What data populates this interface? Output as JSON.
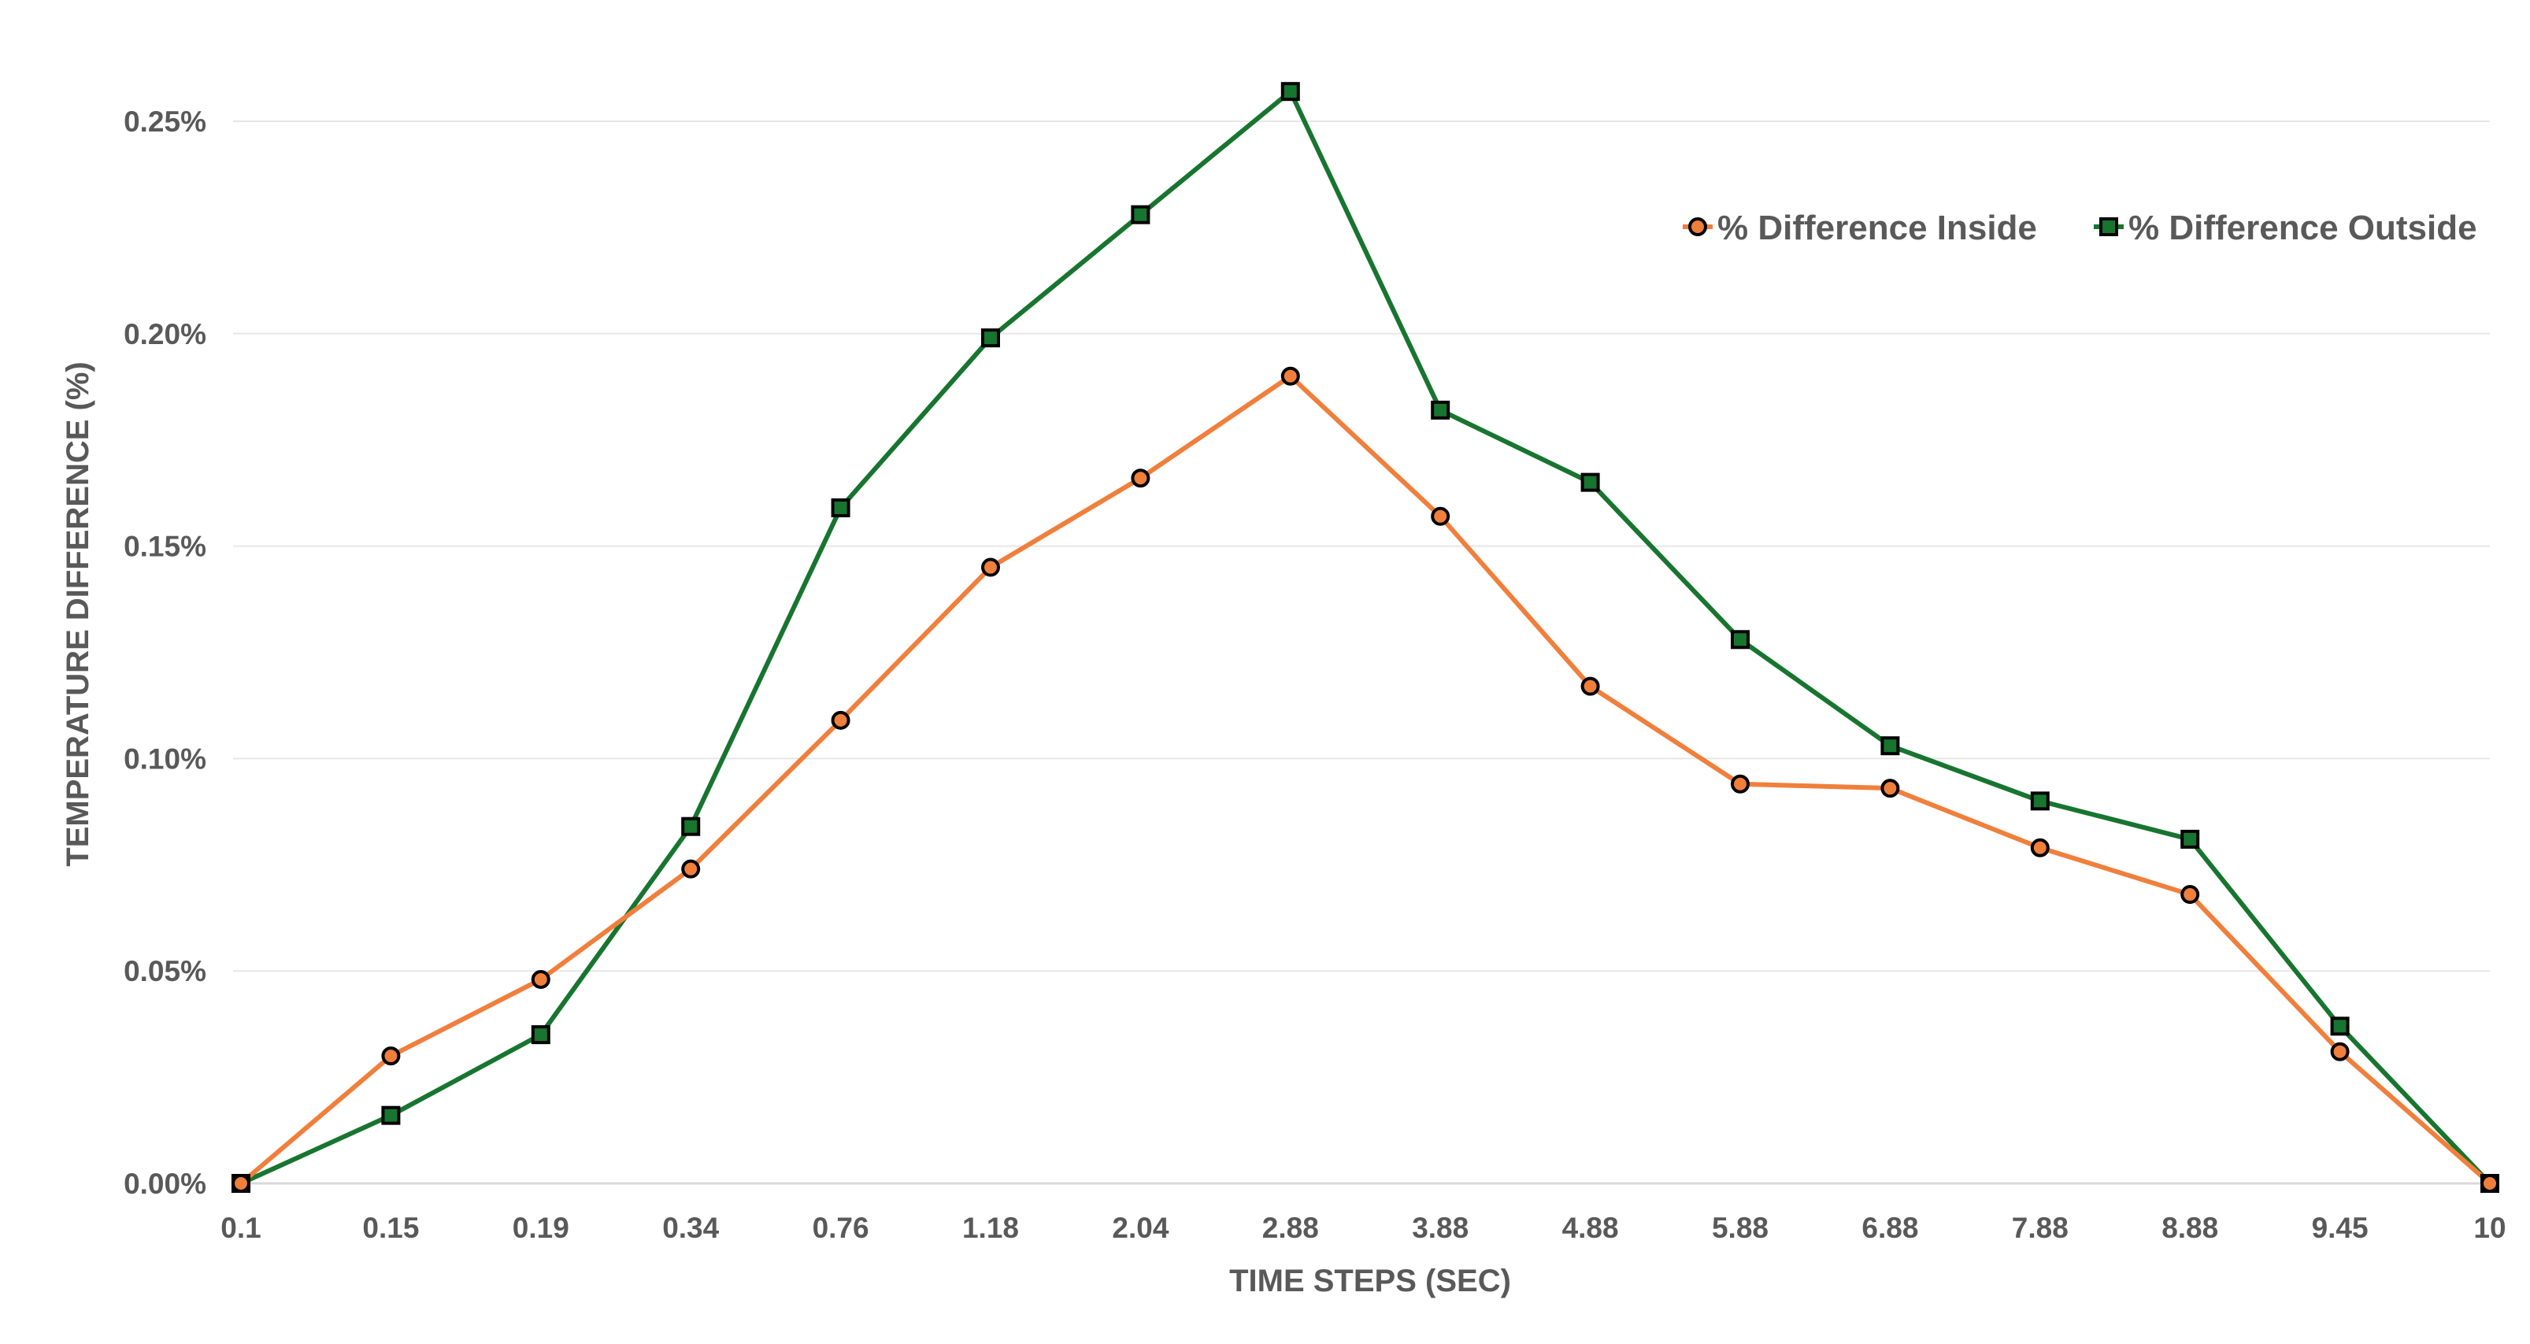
{
  "chart_data": {
    "type": "line",
    "title": "",
    "xlabel": "TIME STEPS (SEC)",
    "ylabel": "TEMPERATURE DIFFERENCE (%)",
    "categories": [
      "0.1",
      "0.15",
      "0.19",
      "0.34",
      "0.76",
      "1.18",
      "2.04",
      "2.88",
      "3.88",
      "4.88",
      "5.88",
      "6.88",
      "7.88",
      "8.88",
      "9.45",
      "10"
    ],
    "y_ticks": [
      "0.00%",
      "0.05%",
      "0.10%",
      "0.15%",
      "0.20%",
      "0.25%"
    ],
    "ylim": [
      0,
      0.26
    ],
    "grid": true,
    "legend_position": "top-right",
    "series": [
      {
        "name": "% Difference Inside",
        "color": "#f07f3c",
        "marker": "circle",
        "values": [
          0.0,
          0.03,
          0.048,
          0.074,
          0.109,
          0.145,
          0.166,
          0.19,
          0.157,
          0.117,
          0.094,
          0.093,
          0.079,
          0.068,
          0.031,
          0.0
        ]
      },
      {
        "name": "% Difference Outside",
        "color": "#17752f",
        "marker": "square",
        "values": [
          0.0,
          0.016,
          0.035,
          0.084,
          0.159,
          0.199,
          0.228,
          0.257,
          0.182,
          0.165,
          0.128,
          0.103,
          0.09,
          0.081,
          0.037,
          0.0
        ]
      }
    ]
  }
}
